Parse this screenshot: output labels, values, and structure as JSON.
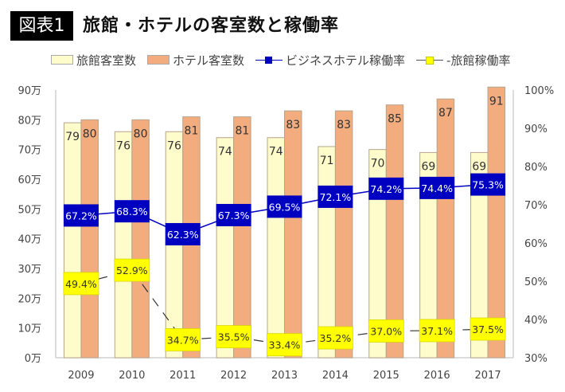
{
  "title": {
    "badge": "図表1",
    "text": "旅館・ホテルの客室数と稼働率"
  },
  "colors": {
    "ryokan_rooms": "#FFFCCB",
    "hotel_rooms": "#F2AC7E",
    "bar_border": "#B5A48E",
    "business_hotel_rate": "#0000C0",
    "ryokan_rate": "#FFFF00",
    "ryokan_rate_line": "#333333"
  },
  "chart_data": {
    "type": "bar",
    "title": "旅館・ホテルの客室数と稼働率",
    "categories": [
      "2009",
      "2010",
      "2011",
      "2012",
      "2013",
      "2014",
      "2015",
      "2016",
      "2017"
    ],
    "series": [
      {
        "name": "旅館客室数",
        "type": "bar",
        "axis": "left",
        "unit": "万",
        "values": [
          79,
          76,
          76,
          74,
          74,
          71,
          70,
          69,
          69
        ]
      },
      {
        "name": "ホテル客室数",
        "type": "bar",
        "axis": "left",
        "unit": "万",
        "values": [
          80,
          80,
          81,
          81,
          83,
          83,
          85,
          87,
          91
        ]
      },
      {
        "name": "ビジネスホテル稼働率",
        "type": "line",
        "axis": "right",
        "unit": "%",
        "values": [
          67.2,
          68.3,
          62.3,
          67.3,
          69.5,
          72.1,
          74.2,
          74.4,
          75.3
        ],
        "labels": [
          "67.2%",
          "68.3%",
          "62.3%",
          "67.3%",
          "69.5%",
          "72.1%",
          "74.2%",
          "74.4%",
          "75.3%"
        ]
      },
      {
        "name": "旅館稼働率",
        "type": "line",
        "axis": "right",
        "unit": "%",
        "values": [
          49.4,
          52.9,
          34.7,
          35.5,
          33.4,
          35.2,
          37.0,
          37.1,
          37.5
        ],
        "labels": [
          "49.4%",
          "52.9%",
          "34.7%",
          "35.5%",
          "33.4%",
          "35.2%",
          "37.0%",
          "37.1%",
          "37.5%"
        ]
      }
    ],
    "legend": {
      "position": "top",
      "entries": [
        "旅館客室数",
        "ホテル客室数",
        "ビジネスホテル稼働率",
        "‐旅館稼働率"
      ]
    },
    "y_left": {
      "range": [
        0,
        90
      ],
      "ticks": [
        "0万",
        "10万",
        "20万",
        "30万",
        "40万",
        "50万",
        "60万",
        "70万",
        "80万",
        "90万"
      ]
    },
    "y_right": {
      "range": [
        30,
        100
      ],
      "ticks": [
        "30%",
        "40%",
        "50%",
        "60%",
        "70%",
        "80%",
        "90%",
        "100%"
      ]
    },
    "xlabel": "",
    "ylabel": "",
    "grid": false
  }
}
